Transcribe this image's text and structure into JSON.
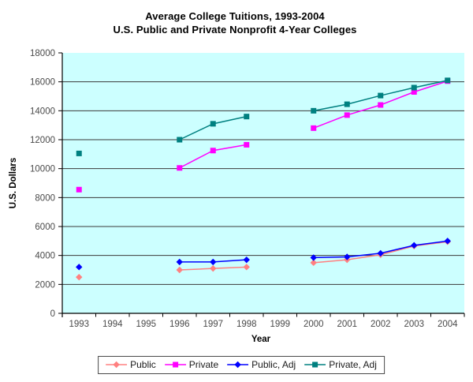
{
  "chart_data": {
    "type": "line",
    "title": "Average College Tuitions, 1993-2004",
    "subtitle": "U.S. Public and Private Nonprofit 4-Year Colleges",
    "xlabel": "Year",
    "ylabel": "U.S. Dollars",
    "ylim": [
      0,
      18000
    ],
    "yticks": [
      0,
      2000,
      4000,
      6000,
      8000,
      10000,
      12000,
      14000,
      16000,
      18000
    ],
    "grid": true,
    "legend_position": "bottom",
    "plot_bg_color": "#CCFFFF",
    "gridline_color": "#3A3A3A",
    "axis_color": "#000000",
    "tick_label_color": "#4A4A4A",
    "categories": [
      "1993",
      "1994",
      "1995",
      "1996",
      "1997",
      "1998",
      "1999",
      "2000",
      "2001",
      "2002",
      "2003",
      "2004"
    ],
    "series": [
      {
        "name": "Public",
        "color": "#FF8080",
        "marker": "diamond",
        "values": [
          2500,
          null,
          null,
          3000,
          3100,
          3200,
          null,
          3500,
          3700,
          4050,
          4650,
          4950
        ]
      },
      {
        "name": "Private",
        "color": "#FF00FF",
        "marker": "square",
        "values": [
          8550,
          null,
          null,
          10050,
          11250,
          11650,
          null,
          12800,
          13700,
          14400,
          15300,
          16050
        ]
      },
      {
        "name": "Public, Adj",
        "color": "#0000FF",
        "marker": "diamond",
        "values": [
          3200,
          null,
          null,
          3550,
          3550,
          3700,
          null,
          3850,
          3900,
          4150,
          4700,
          5000
        ]
      },
      {
        "name": "Private, Adj",
        "color": "#008080",
        "marker": "square",
        "values": [
          11050,
          null,
          null,
          12000,
          13100,
          13600,
          null,
          14000,
          14450,
          15050,
          15600,
          16100
        ]
      }
    ]
  }
}
